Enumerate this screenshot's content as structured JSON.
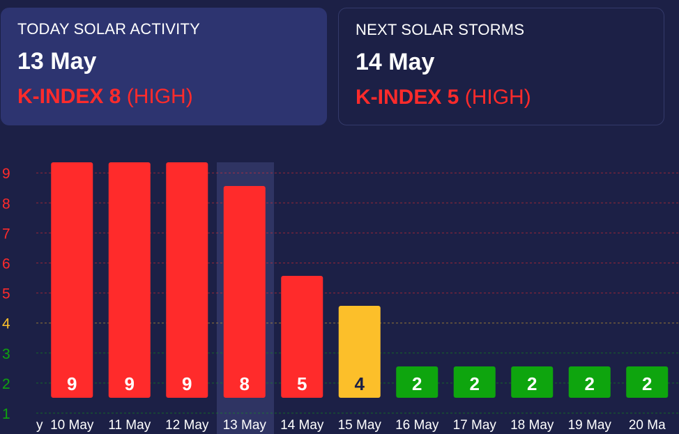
{
  "today_card": {
    "title": "TODAY SOLAR ACTIVITY",
    "date": "13 May",
    "k_label": "K-INDEX 8",
    "k_level": "(HIGH)"
  },
  "next_card": {
    "title": "NEXT SOLAR STORMS",
    "date": "14 May",
    "k_label": "K-INDEX 5",
    "k_level": "(HIGH)"
  },
  "colors": {
    "high": "#ff2b2b",
    "moderate": "#fcbf2a",
    "low": "#0ea50e",
    "background": "#1c2046",
    "highlight": "#2f3463"
  },
  "chart_data": {
    "type": "bar",
    "categories": [
      "10 May",
      "11 May",
      "12 May",
      "13 May",
      "14 May",
      "15 May",
      "16 May",
      "17 May",
      "18 May",
      "19 May",
      "20 Ma"
    ],
    "values": [
      9,
      9,
      9,
      8,
      5,
      4,
      2,
      2,
      2,
      2,
      2
    ],
    "value_labels": [
      "9",
      "9",
      "9",
      "8",
      "5",
      "4",
      "2",
      "2",
      "2",
      "2",
      "2"
    ],
    "highlight_category": "13 May",
    "y_ticks": [
      "1",
      "2",
      "3",
      "4",
      "5",
      "6",
      "7",
      "8",
      "9"
    ],
    "ylim": [
      1,
      9
    ],
    "grid": "dashed horizontal",
    "legend": "none"
  }
}
